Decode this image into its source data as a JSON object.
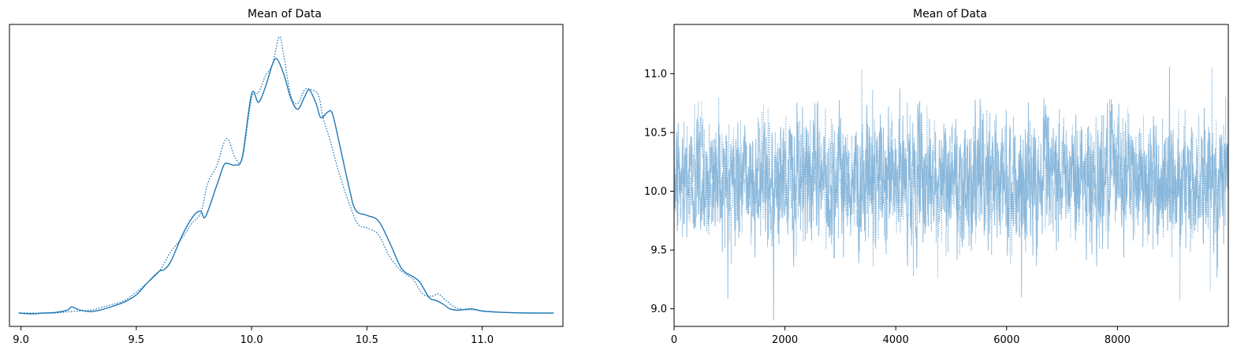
{
  "chart_data": [
    {
      "type": "line",
      "title": "Mean of Data",
      "xlabel": "",
      "ylabel": "",
      "xlim": [
        8.95,
        11.35
      ],
      "xticks": [
        9.0,
        9.5,
        10.0,
        10.5,
        11.0
      ],
      "xtick_labels": [
        "9.0",
        "9.5",
        "10.0",
        "10.5",
        "11.0"
      ],
      "ylim": [
        0,
        1.0
      ],
      "grid": false,
      "series": [
        {
          "line_style": "solid",
          "color": "#1f77b4",
          "x": [
            8.99,
            9.05,
            9.1,
            9.15,
            9.2,
            9.22,
            9.25,
            9.3,
            9.35,
            9.4,
            9.45,
            9.5,
            9.55,
            9.6,
            9.62,
            9.65,
            9.7,
            9.75,
            9.78,
            9.8,
            9.85,
            9.88,
            9.9,
            9.93,
            9.96,
            10.0,
            10.03,
            10.06,
            10.09,
            10.11,
            10.14,
            10.17,
            10.2,
            10.23,
            10.25,
            10.28,
            10.3,
            10.33,
            10.35,
            10.38,
            10.42,
            10.45,
            10.5,
            10.55,
            10.6,
            10.65,
            10.7,
            10.73,
            10.77,
            10.8,
            10.83,
            10.86,
            10.9,
            10.95,
            11.0,
            11.05,
            11.1,
            11.2,
            11.31
          ],
          "y": [
            0.0,
            -0.003,
            0.0,
            0.002,
            0.01,
            0.022,
            0.012,
            0.005,
            0.012,
            0.025,
            0.04,
            0.065,
            0.11,
            0.15,
            0.155,
            0.185,
            0.28,
            0.35,
            0.365,
            0.345,
            0.46,
            0.53,
            0.535,
            0.53,
            0.56,
            0.785,
            0.755,
            0.81,
            0.89,
            0.91,
            0.855,
            0.77,
            0.73,
            0.775,
            0.8,
            0.75,
            0.7,
            0.72,
            0.715,
            0.61,
            0.46,
            0.37,
            0.35,
            0.33,
            0.25,
            0.16,
            0.13,
            0.11,
            0.055,
            0.045,
            0.032,
            0.015,
            0.01,
            0.015,
            0.007,
            0.004,
            0.002,
            0.0,
            0.0
          ]
        },
        {
          "line_style": "dotted",
          "color": "#1f77b4",
          "x": [
            8.99,
            9.05,
            9.1,
            9.15,
            9.2,
            9.25,
            9.3,
            9.35,
            9.4,
            9.45,
            9.5,
            9.55,
            9.6,
            9.65,
            9.7,
            9.74,
            9.78,
            9.81,
            9.85,
            9.88,
            9.9,
            9.93,
            9.96,
            10.0,
            10.03,
            10.06,
            10.09,
            10.12,
            10.14,
            10.17,
            10.2,
            10.23,
            10.26,
            10.29,
            10.31,
            10.34,
            10.38,
            10.42,
            10.46,
            10.5,
            10.55,
            10.6,
            10.65,
            10.7,
            10.74,
            10.78,
            10.81,
            10.84,
            10.88,
            10.92,
            10.96,
            11.0,
            11.05,
            11.1,
            11.2,
            11.31
          ],
          "y": [
            0.0,
            0.0,
            0.0,
            0.0,
            0.004,
            0.007,
            0.01,
            0.02,
            0.032,
            0.045,
            0.075,
            0.11,
            0.15,
            0.22,
            0.27,
            0.32,
            0.36,
            0.465,
            0.53,
            0.61,
            0.62,
            0.555,
            0.555,
            0.77,
            0.79,
            0.85,
            0.89,
            0.99,
            0.92,
            0.78,
            0.75,
            0.8,
            0.8,
            0.78,
            0.7,
            0.62,
            0.5,
            0.4,
            0.32,
            0.305,
            0.28,
            0.2,
            0.15,
            0.12,
            0.07,
            0.06,
            0.068,
            0.047,
            0.022,
            0.012,
            0.012,
            0.008,
            0.004,
            0.002,
            0.0,
            0.0
          ]
        }
      ]
    },
    {
      "type": "line",
      "title": "Mean of Data",
      "xlabel": "",
      "ylabel": "",
      "xlim": [
        0,
        10000
      ],
      "xticks": [
        0,
        2000,
        4000,
        6000,
        8000
      ],
      "xtick_labels": [
        "0",
        "2000",
        "4000",
        "6000",
        "8000"
      ],
      "ylim": [
        8.85,
        11.42
      ],
      "yticks": [
        9.0,
        9.5,
        10.0,
        10.5,
        11.0
      ],
      "ytick_labels": [
        "9.0",
        "9.5",
        "10.0",
        "10.5",
        "11.0"
      ],
      "grid": false,
      "series": [
        {
          "line_style": "solid",
          "color": "#7fb2d8",
          "description": "MCMC trace, approx. 10000 draws around mean 10.1",
          "n": 10000,
          "mean": 10.1,
          "sd": 0.26
        },
        {
          "line_style": "dotted",
          "color": "#7fb2d8",
          "n": 10000,
          "mean": 10.1,
          "sd": 0.26
        }
      ]
    }
  ]
}
